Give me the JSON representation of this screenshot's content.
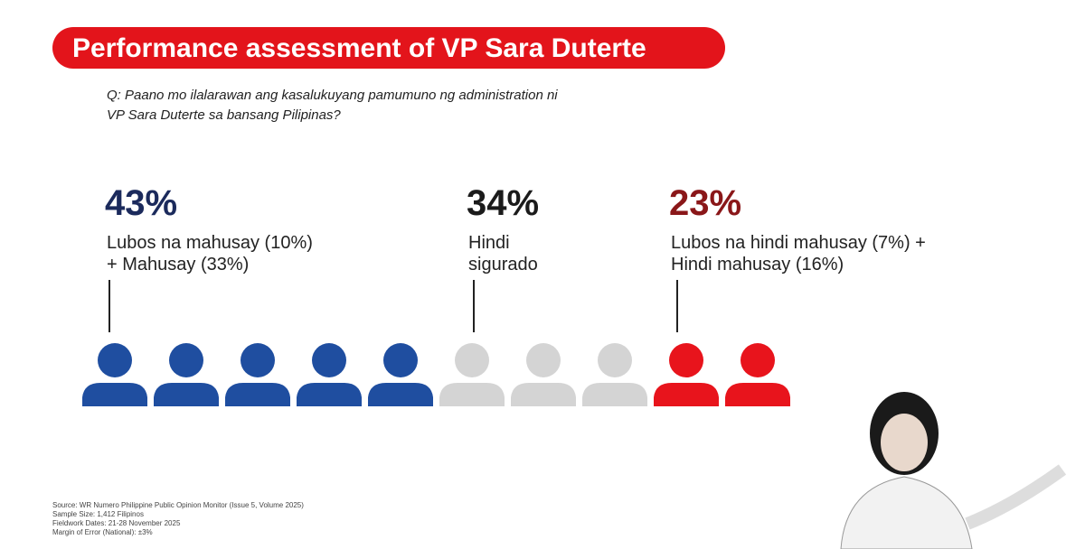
{
  "header": {
    "title": "Performance assessment of VP Sara Duterte"
  },
  "question": [
    "Q: Paano mo ilalarawan ang kasalukuyang pamumuno ng administration ni",
    "VP Sara Duterte sa bansang Pilipinas?"
  ],
  "groups": [
    {
      "percent": "43%",
      "label": [
        "Lubos na mahusay (10%)",
        "+ Mahusay (33%)"
      ]
    },
    {
      "percent": "34%",
      "label": [
        "Hindi",
        "sigurado"
      ]
    },
    {
      "percent": "23%",
      "label": [
        "Lubos na hindi mahusay (7%) +",
        "Hindi mahusay (16%)"
      ]
    }
  ],
  "footnotes": [
    "Source: WR Numero Philippine Public Opinion Monitor (Issue 5, Volume 2025)",
    "Sample Size: 1,412 Filipinos",
    "Fieldwork Dates: 21-28 November 2025",
    "Margin of Error (National): ±3%"
  ]
}
